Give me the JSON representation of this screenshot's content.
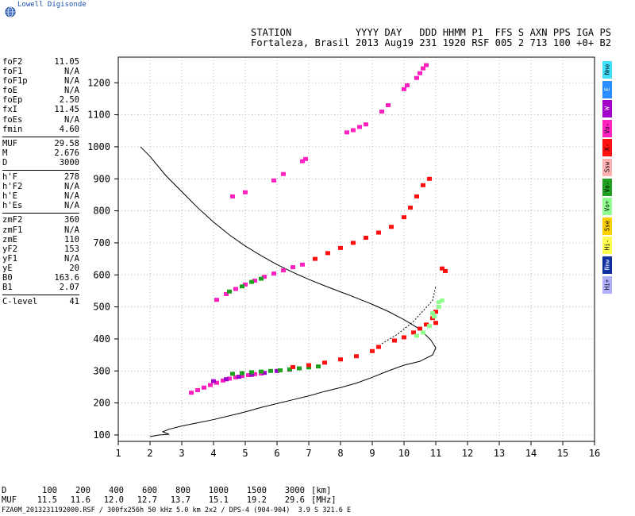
{
  "app": {
    "logo_text": "Lowell Digisonde"
  },
  "header": {
    "line1": "STATION           YYYY DAY   DDD HHMM P1  FFS S AXN PPS IGA PS",
    "line2": "Fortaleza, Brasil 2013 Aug19 231 1920 RSF 005 2 713 100 +0+ B2"
  },
  "params": [
    {
      "name": "foF2",
      "value": "11.05"
    },
    {
      "name": "foF1",
      "value": "N/A"
    },
    {
      "name": "foF1p",
      "value": "N/A"
    },
    {
      "name": "foE",
      "value": "N/A"
    },
    {
      "name": "foEp",
      "value": "2.50"
    },
    {
      "name": "fxI",
      "value": "11.45"
    },
    {
      "name": "foEs",
      "value": "N/A"
    },
    {
      "name": "fmin",
      "value": "4.60"
    },
    {
      "sep": true
    },
    {
      "name": "MUF",
      "value": "29.58"
    },
    {
      "name": "M",
      "value": "2.676"
    },
    {
      "name": "D",
      "value": "3000"
    },
    {
      "sep": true
    },
    {
      "name": "h'F",
      "value": "278"
    },
    {
      "name": "h'F2",
      "value": "N/A"
    },
    {
      "name": "h'E",
      "value": "N/A"
    },
    {
      "name": "h'Es",
      "value": "N/A"
    },
    {
      "sep": true
    },
    {
      "name": "zmF2",
      "value": "360"
    },
    {
      "name": "zmF1",
      "value": "N/A"
    },
    {
      "name": "zmE",
      "value": "110"
    },
    {
      "name": "yF2",
      "value": "153"
    },
    {
      "name": "yF1",
      "value": "N/A"
    },
    {
      "name": "yE",
      "value": "20"
    },
    {
      "name": "B0",
      "value": "163.6"
    },
    {
      "name": "B1",
      "value": "2.07"
    },
    {
      "sep": true
    },
    {
      "name": "C-level",
      "value": "41"
    }
  ],
  "legend": [
    {
      "label": "Nne",
      "color": "#40e0ff"
    },
    {
      "label": "E",
      "color": "#2a8cff"
    },
    {
      "label": "W",
      "color": "#a000c8"
    },
    {
      "label": "Vo-",
      "color": "#ff20c0"
    },
    {
      "label": "X-",
      "color": "#ff1010"
    },
    {
      "label": "Ssw",
      "color": "#ffb0b0"
    },
    {
      "label": "Vo-",
      "color": "#20a020"
    },
    {
      "label": "Vo+",
      "color": "#90ff90"
    },
    {
      "label": "Sse",
      "color": "#ffd000"
    },
    {
      "label": "Hi-",
      "color": "#ffff50"
    },
    {
      "label": "Nnw",
      "color": "#1030a0"
    },
    {
      "label": "Hi+",
      "color": "#b0b0ff"
    }
  ],
  "muf_table": {
    "rows": [
      {
        "label": "D",
        "values": [
          "100",
          "200",
          "400",
          "600",
          "800",
          "1000",
          "1500",
          "3000"
        ],
        "unit": "[km]"
      },
      {
        "label": "MUF",
        "values": [
          "11.5",
          "11.6",
          "12.0",
          "12.7",
          "13.7",
          "15.1",
          "19.2",
          "29.6"
        ],
        "unit": "[MHz]"
      }
    ]
  },
  "footer": "FZA0M_2013231192000.RSF / 300fx256h 50 kHz 5.0 km 2x2 / DPS-4 (904-904)  3.9 S 321.6 E",
  "chart_data": {
    "type": "scatter",
    "xlim": [
      1,
      16
    ],
    "ylim": [
      80,
      1280
    ],
    "xticks": [
      1,
      2,
      3,
      4,
      5,
      6,
      7,
      8,
      9,
      10,
      11,
      12,
      13,
      14,
      15,
      16
    ],
    "yticks": [
      100,
      200,
      300,
      400,
      500,
      600,
      700,
      800,
      900,
      1000,
      1100,
      1200
    ],
    "grid": true,
    "series": [
      {
        "color": "#ff20c0",
        "points": [
          [
            3.3,
            232
          ],
          [
            3.5,
            240
          ],
          [
            3.7,
            248
          ],
          [
            3.9,
            256
          ],
          [
            4.1,
            263
          ],
          [
            4.3,
            270
          ],
          [
            4.5,
            276
          ],
          [
            4.7,
            280
          ],
          [
            4.9,
            284
          ],
          [
            5.1,
            287
          ],
          [
            5.3,
            290
          ],
          [
            5.5,
            292
          ]
        ]
      },
      {
        "color": "#a000c8",
        "points": [
          [
            4.0,
            268
          ],
          [
            4.4,
            274
          ],
          [
            4.8,
            282
          ],
          [
            5.2,
            288
          ],
          [
            5.6,
            294
          ],
          [
            6.0,
            300
          ],
          [
            6.4,
            304
          ]
        ]
      },
      {
        "color": "#20a020",
        "points": [
          [
            4.6,
            291
          ],
          [
            4.9,
            293
          ],
          [
            5.2,
            296
          ],
          [
            5.5,
            298
          ],
          [
            5.8,
            300
          ],
          [
            6.1,
            302
          ],
          [
            6.4,
            305
          ],
          [
            6.7,
            308
          ],
          [
            7.0,
            311
          ],
          [
            7.3,
            314
          ]
        ]
      },
      {
        "color": "#ff1010",
        "points": [
          [
            6.5,
            312
          ],
          [
            7.0,
            318
          ],
          [
            7.5,
            326
          ],
          [
            8.0,
            336
          ],
          [
            8.5,
            346
          ],
          [
            9.0,
            362
          ],
          [
            9.2,
            375
          ],
          [
            9.7,
            395
          ],
          [
            10.0,
            405
          ],
          [
            10.3,
            420
          ],
          [
            10.5,
            432
          ],
          [
            10.7,
            445
          ],
          [
            10.9,
            465
          ],
          [
            11.0,
            485
          ],
          [
            11.2,
            620
          ],
          [
            11.3,
            612
          ],
          [
            11.0,
            450
          ]
        ]
      },
      {
        "color": "#90ff90",
        "points": [
          [
            10.4,
            410
          ],
          [
            10.6,
            420
          ],
          [
            10.8,
            440
          ],
          [
            10.95,
            470
          ],
          [
            11.1,
            500
          ],
          [
            11.2,
            520
          ],
          [
            11.1,
            515
          ],
          [
            10.9,
            480
          ]
        ]
      },
      {
        "color": "#ff20c0",
        "points": [
          [
            4.1,
            522
          ],
          [
            4.4,
            540
          ],
          [
            4.7,
            556
          ],
          [
            5.0,
            570
          ],
          [
            5.3,
            582
          ],
          [
            5.6,
            594
          ],
          [
            5.9,
            604
          ],
          [
            6.2,
            614
          ],
          [
            6.5,
            624
          ],
          [
            6.8,
            632
          ]
        ]
      },
      {
        "color": "#20a020",
        "points": [
          [
            4.5,
            548
          ],
          [
            4.9,
            564
          ],
          [
            5.2,
            578
          ],
          [
            5.5,
            588
          ]
        ]
      },
      {
        "color": "#ff1010",
        "points": [
          [
            7.2,
            650
          ],
          [
            7.6,
            668
          ],
          [
            8.0,
            684
          ],
          [
            8.4,
            700
          ],
          [
            8.8,
            716
          ],
          [
            9.2,
            732
          ],
          [
            9.6,
            750
          ],
          [
            10.0,
            780
          ],
          [
            10.2,
            810
          ],
          [
            10.4,
            845
          ],
          [
            10.6,
            880
          ],
          [
            10.8,
            900
          ]
        ]
      },
      {
        "color": "#ff20c0",
        "points": [
          [
            4.6,
            845
          ],
          [
            5.0,
            858
          ],
          [
            5.9,
            895
          ],
          [
            6.2,
            915
          ],
          [
            6.8,
            955
          ],
          [
            6.9,
            962
          ],
          [
            8.2,
            1045
          ],
          [
            8.4,
            1052
          ],
          [
            8.6,
            1062
          ],
          [
            8.8,
            1070
          ],
          [
            9.3,
            1110
          ],
          [
            9.5,
            1130
          ],
          [
            10.0,
            1180
          ],
          [
            10.1,
            1192
          ],
          [
            10.4,
            1215
          ],
          [
            10.5,
            1230
          ],
          [
            10.6,
            1245
          ],
          [
            10.7,
            1255
          ]
        ]
      }
    ],
    "trace": [
      [
        1.7,
        1000
      ],
      [
        2.0,
        970
      ],
      [
        2.5,
        910
      ],
      [
        3.0,
        860
      ],
      [
        3.5,
        810
      ],
      [
        4.0,
        765
      ],
      [
        4.5,
        725
      ],
      [
        5.0,
        690
      ],
      [
        5.5,
        660
      ],
      [
        6.0,
        632
      ],
      [
        6.5,
        608
      ],
      [
        7.0,
        586
      ],
      [
        7.5,
        566
      ],
      [
        8.0,
        547
      ],
      [
        8.5,
        528
      ],
      [
        9.0,
        508
      ],
      [
        9.5,
        486
      ],
      [
        10.0,
        460
      ],
      [
        10.5,
        430
      ],
      [
        10.85,
        396
      ],
      [
        11.0,
        372
      ],
      [
        10.9,
        350
      ],
      [
        10.5,
        330
      ],
      [
        10.0,
        318
      ],
      [
        9.5,
        300
      ],
      [
        9.0,
        280
      ],
      [
        8.5,
        262
      ],
      [
        8.0,
        248
      ],
      [
        7.5,
        236
      ],
      [
        7.0,
        222
      ],
      [
        6.5,
        210
      ],
      [
        6.0,
        198
      ],
      [
        5.5,
        186
      ],
      [
        5.0,
        172
      ],
      [
        4.5,
        160
      ],
      [
        4.0,
        148
      ],
      [
        3.5,
        138
      ],
      [
        3.0,
        128
      ],
      [
        2.6,
        118
      ],
      [
        2.4,
        110
      ],
      [
        2.6,
        102
      ],
      [
        2.3,
        100
      ],
      [
        2.0,
        95
      ]
    ],
    "dashed": [
      [
        9.3,
        385
      ],
      [
        9.8,
        415
      ],
      [
        10.3,
        455
      ],
      [
        10.9,
        520
      ],
      [
        11.0,
        565
      ]
    ]
  }
}
